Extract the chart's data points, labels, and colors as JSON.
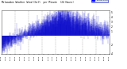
{
  "title": "Milwaukee Weather Wind Chill",
  "legend_label": "Wind Chill",
  "legend_color": "#0000ff",
  "line_color": "#0000cc",
  "background_color": "#ffffff",
  "plot_bg_color": "#ffffff",
  "grid_color": "#888888",
  "ylim": [
    -4,
    5.5
  ],
  "ytick_vals": [
    5,
    4,
    3,
    2,
    1,
    -2,
    -4
  ],
  "num_points": 1440,
  "seed": 42
}
